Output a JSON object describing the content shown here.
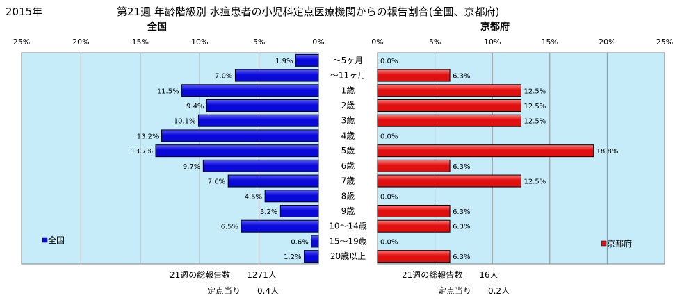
{
  "header": {
    "year": "2015年",
    "title": "第21週 年齢階級別 水痘患者の小児科定点医療機関からの報告割合(全国、京都府)"
  },
  "colors": {
    "plot_bg": "#c6ecfa",
    "national_bar": "#0a0ad8",
    "kyoto_bar": "#e01010",
    "grid": "#909090"
  },
  "chart_data": [
    {
      "type": "bar",
      "orientation": "horizontal",
      "direction": "right-to-left",
      "title": "全国",
      "categories": [
        "～5ヶ月",
        "～11ヶ月",
        "1歳",
        "2歳",
        "3歳",
        "4歳",
        "5歳",
        "6歳",
        "7歳",
        "8歳",
        "9歳",
        "10～14歳",
        "15～19歳",
        "20歳以上"
      ],
      "series": [
        {
          "name": "全国",
          "values": [
            1.9,
            7.0,
            11.5,
            9.4,
            10.1,
            13.2,
            13.7,
            9.7,
            7.6,
            4.5,
            3.2,
            6.5,
            0.6,
            1.2
          ]
        }
      ],
      "data_labels": [
        "1.9%",
        "7.0%",
        "11.5%",
        "9.4%",
        "10.1%",
        "13.2%",
        "13.7%",
        "9.7%",
        "7.6%",
        "4.5%",
        "3.2%",
        "6.5%",
        "0.6%",
        "1.2%"
      ],
      "xlim": [
        0,
        25
      ],
      "ticks": [
        "25%",
        "20%",
        "15%",
        "10%",
        "5%",
        "0%"
      ],
      "grid": true,
      "legend": "bottom-left",
      "legend_text": "全国"
    },
    {
      "type": "bar",
      "orientation": "horizontal",
      "direction": "left-to-right",
      "title": "京都府",
      "categories": [
        "～5ヶ月",
        "～11ヶ月",
        "1歳",
        "2歳",
        "3歳",
        "4歳",
        "5歳",
        "6歳",
        "7歳",
        "8歳",
        "9歳",
        "10～14歳",
        "15～19歳",
        "20歳以上"
      ],
      "series": [
        {
          "name": "京都府",
          "values": [
            0.0,
            6.3,
            12.5,
            12.5,
            12.5,
            0.0,
            18.8,
            6.3,
            12.5,
            0.0,
            6.3,
            6.3,
            0.0,
            6.3
          ]
        }
      ],
      "data_labels": [
        "0.0%",
        "6.3%",
        "12.5%",
        "12.5%",
        "12.5%",
        "0.0%",
        "18.8%",
        "6.3%",
        "12.5%",
        "0.0%",
        "6.3%",
        "6.3%",
        "0.0%",
        "6.3%"
      ],
      "xlim": [
        0,
        25
      ],
      "ticks": [
        "0%",
        "5%",
        "10%",
        "15%",
        "20%",
        "25%"
      ],
      "grid": true,
      "legend": "bottom-right",
      "legend_text": "京都府"
    }
  ],
  "footer": {
    "national_total": "21週の総報告数　　1271人",
    "national_per_site": "定点当り　　0.4人",
    "kyoto_total": "21週の総報告数　　16人",
    "kyoto_per_site": "定点当り　　0.2人"
  }
}
